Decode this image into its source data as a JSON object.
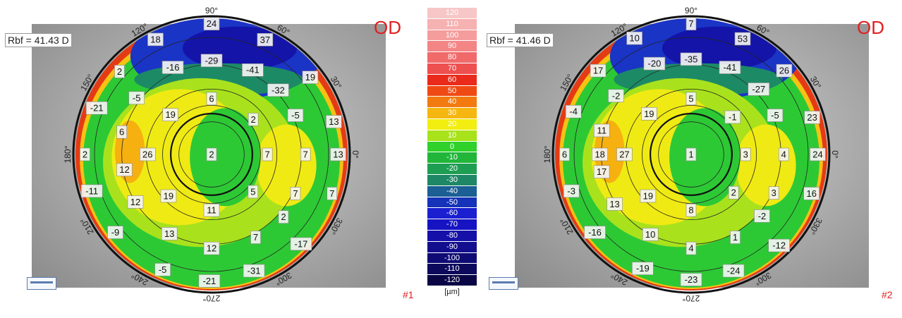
{
  "left_map": {
    "rbf": "Rbf = 41.43 D",
    "eye_label": "OD",
    "image_number": "#1",
    "angle_labels": [
      "90°",
      "60°",
      "30°",
      "0°",
      "330°",
      "300°",
      "270°",
      "240°",
      "210°",
      "180°",
      "150°",
      "120°"
    ],
    "values": [
      {
        "v": "24",
        "r": 0.96,
        "a": 90
      },
      {
        "v": "37",
        "r": 0.93,
        "a": 65
      },
      {
        "v": "19",
        "r": 0.92,
        "a": 38
      },
      {
        "v": "13",
        "r": 0.93,
        "a": 15
      },
      {
        "v": "13",
        "r": 0.93,
        "a": 0
      },
      {
        "v": "7",
        "r": 0.93,
        "a": -18
      },
      {
        "v": "-17",
        "r": 0.93,
        "a": -45
      },
      {
        "v": "-31",
        "r": 0.91,
        "a": -70
      },
      {
        "v": "-21",
        "r": 0.93,
        "a": -91
      },
      {
        "v": "-5",
        "r": 0.92,
        "a": -113
      },
      {
        "v": "-9",
        "r": 0.91,
        "a": -141
      },
      {
        "v": "-11",
        "r": 0.92,
        "a": -163
      },
      {
        "v": "2",
        "r": 0.93,
        "a": 180
      },
      {
        "v": "-21",
        "r": 0.91,
        "a": 158
      },
      {
        "v": "2",
        "r": 0.91,
        "a": 138
      },
      {
        "v": "18",
        "r": 0.94,
        "a": 116
      },
      {
        "v": "-29",
        "r": 0.69,
        "a": 90
      },
      {
        "v": "-41",
        "r": 0.69,
        "a": 64
      },
      {
        "v": "-32",
        "r": 0.68,
        "a": 44
      },
      {
        "v": "-16",
        "r": 0.7,
        "a": 114
      },
      {
        "v": "-5",
        "r": 0.69,
        "a": 143
      },
      {
        "v": "6",
        "r": 0.68,
        "a": 166
      },
      {
        "v": "-5",
        "r": 0.68,
        "a": 25
      },
      {
        "v": "7",
        "r": 0.69,
        "a": 0
      },
      {
        "v": "7",
        "r": 0.68,
        "a": -25
      },
      {
        "v": "2",
        "r": 0.7,
        "a": -41
      },
      {
        "v": "7",
        "r": 0.69,
        "a": -62
      },
      {
        "v": "12",
        "r": 0.69,
        "a": -90
      },
      {
        "v": "13",
        "r": 0.66,
        "a": -118
      },
      {
        "v": "12",
        "r": 0.66,
        "a": -148
      },
      {
        "v": "12",
        "r": 0.65,
        "a": -170
      },
      {
        "v": "6",
        "r": 0.41,
        "a": 90
      },
      {
        "v": "2",
        "r": 0.4,
        "a": 40
      },
      {
        "v": "19",
        "r": 0.42,
        "a": 136
      },
      {
        "v": "26",
        "r": 0.47,
        "a": 180
      },
      {
        "v": "19",
        "r": 0.44,
        "a": -136
      },
      {
        "v": "11",
        "r": 0.41,
        "a": -90
      },
      {
        "v": "5",
        "r": 0.41,
        "a": -42
      },
      {
        "v": "7",
        "r": 0.41,
        "a": 0
      },
      {
        "v": "2",
        "r": 0.0,
        "a": 0
      }
    ]
  },
  "right_map": {
    "rbf": "Rbf = 41.46 D",
    "eye_label": "OD",
    "image_number": "#2",
    "angle_labels": [
      "90°",
      "60°",
      "30°",
      "0°",
      "330°",
      "300°",
      "270°",
      "240°",
      "210°",
      "180°",
      "150°",
      "120°"
    ],
    "values": [
      {
        "v": "7",
        "r": 0.96,
        "a": 90
      },
      {
        "v": "53",
        "r": 0.93,
        "a": 66
      },
      {
        "v": "26",
        "r": 0.92,
        "a": 42
      },
      {
        "v": "23",
        "r": 0.93,
        "a": 17
      },
      {
        "v": "24",
        "r": 0.93,
        "a": 0
      },
      {
        "v": "16",
        "r": 0.93,
        "a": -18
      },
      {
        "v": "-12",
        "r": 0.93,
        "a": -46
      },
      {
        "v": "-24",
        "r": 0.91,
        "a": -70
      },
      {
        "v": "-23",
        "r": 0.92,
        "a": -90
      },
      {
        "v": "-19",
        "r": 0.91,
        "a": -113
      },
      {
        "v": "-16",
        "r": 0.91,
        "a": -141
      },
      {
        "v": "-3",
        "r": 0.92,
        "a": -163
      },
      {
        "v": "6",
        "r": 0.93,
        "a": 180
      },
      {
        "v": "-4",
        "r": 0.92,
        "a": 160
      },
      {
        "v": "17",
        "r": 0.92,
        "a": 138
      },
      {
        "v": "10",
        "r": 0.95,
        "a": 116
      },
      {
        "v": "-35",
        "r": 0.7,
        "a": 90
      },
      {
        "v": "-41",
        "r": 0.7,
        "a": 66
      },
      {
        "v": "-27",
        "r": 0.69,
        "a": 44
      },
      {
        "v": "-20",
        "r": 0.72,
        "a": 112
      },
      {
        "v": "-2",
        "r": 0.7,
        "a": 142
      },
      {
        "v": "11",
        "r": 0.68,
        "a": 165
      },
      {
        "v": "-5",
        "r": 0.68,
        "a": 25
      },
      {
        "v": "4",
        "r": 0.68,
        "a": 0
      },
      {
        "v": "3",
        "r": 0.67,
        "a": -25
      },
      {
        "v": "-2",
        "r": 0.69,
        "a": -41
      },
      {
        "v": "1",
        "r": 0.69,
        "a": -62
      },
      {
        "v": "4",
        "r": 0.69,
        "a": -90
      },
      {
        "v": "10",
        "r": 0.66,
        "a": -117
      },
      {
        "v": "13",
        "r": 0.67,
        "a": -147
      },
      {
        "v": "17",
        "r": 0.67,
        "a": -169
      },
      {
        "v": "5",
        "r": 0.41,
        "a": 90
      },
      {
        "v": "-1",
        "r": 0.41,
        "a": 42
      },
      {
        "v": "19",
        "r": 0.43,
        "a": 136
      },
      {
        "v": "18",
        "r": 0.67,
        "a": 180
      },
      {
        "v": "27",
        "r": 0.49,
        "a": 180
      },
      {
        "v": "19",
        "r": 0.44,
        "a": -136
      },
      {
        "v": "8",
        "r": 0.41,
        "a": -90
      },
      {
        "v": "2",
        "r": 0.42,
        "a": -42
      },
      {
        "v": "3",
        "r": 0.4,
        "a": 0
      },
      {
        "v": "1",
        "r": 0.0,
        "a": 0
      }
    ]
  },
  "color_scale": {
    "unit": "[µm]",
    "rows": [
      {
        "label": "120",
        "color": "#f7c6c6"
      },
      {
        "label": "110",
        "color": "#f6b1b1"
      },
      {
        "label": "100",
        "color": "#f59c9c"
      },
      {
        "label": "90",
        "color": "#f38585"
      },
      {
        "label": "80",
        "color": "#f06a6a"
      },
      {
        "label": "70",
        "color": "#ee4f4f"
      },
      {
        "label": "60",
        "color": "#ea2a1a"
      },
      {
        "label": "50",
        "color": "#f04a14"
      },
      {
        "label": "40",
        "color": "#f27a10"
      },
      {
        "label": "30",
        "color": "#f6b610"
      },
      {
        "label": "20",
        "color": "#f2ee10"
      },
      {
        "label": "10",
        "color": "#a8e21a"
      },
      {
        "label": "0",
        "color": "#2fd12a"
      },
      {
        "label": "-10",
        "color": "#21b63a"
      },
      {
        "label": "-20",
        "color": "#1e9e52"
      },
      {
        "label": "-30",
        "color": "#1d8766"
      },
      {
        "label": "-40",
        "color": "#1b5f95"
      },
      {
        "label": "-50",
        "color": "#1532b8"
      },
      {
        "label": "-60",
        "color": "#1a1fd0"
      },
      {
        "label": "-70",
        "color": "#1614c2"
      },
      {
        "label": "-80",
        "color": "#1410a8"
      },
      {
        "label": "-90",
        "color": "#120e8e"
      },
      {
        "label": "-100",
        "color": "#0f0b74"
      },
      {
        "label": "-110",
        "color": "#0d095c"
      },
      {
        "label": "-120",
        "color": "#0a0645"
      }
    ]
  }
}
